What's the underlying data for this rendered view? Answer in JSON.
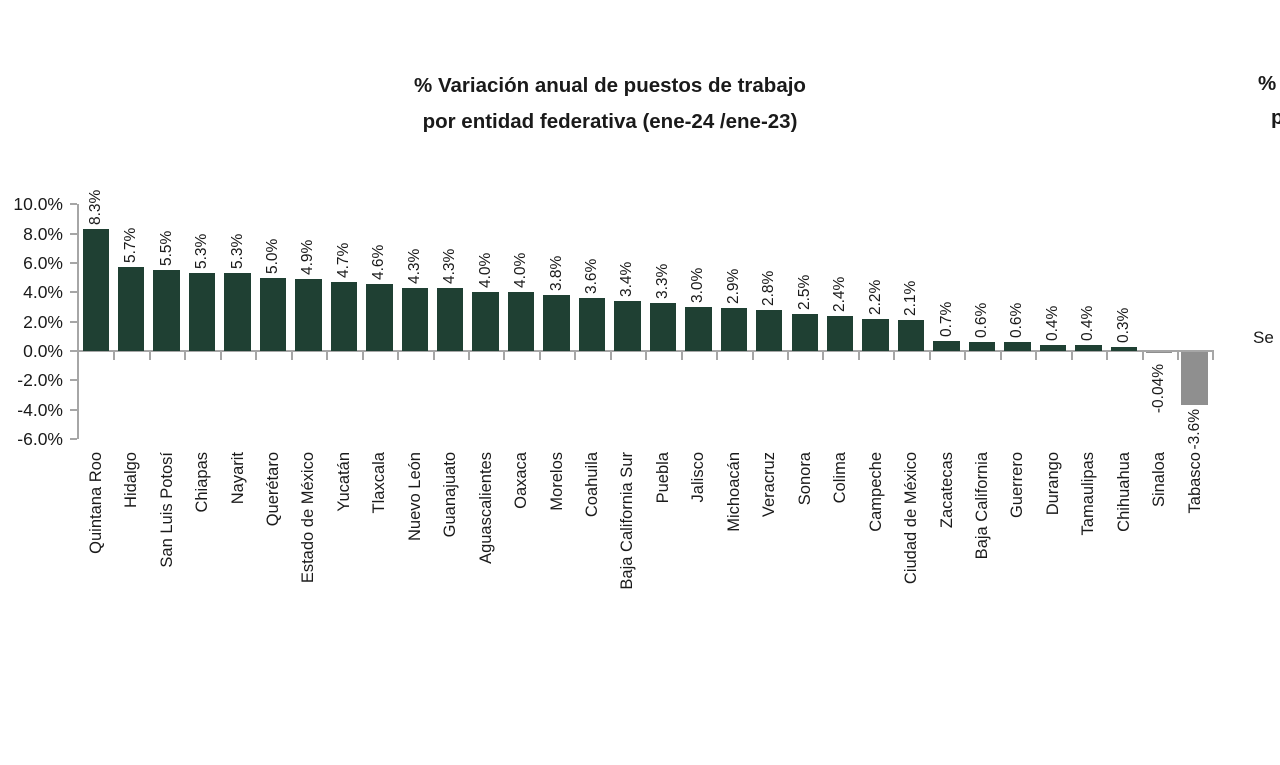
{
  "chart_data": {
    "type": "bar",
    "title": "% Variación anual de puestos de trabajo por entidad federativa (ene-24 /ene-23)",
    "title_lines": [
      "% Variación anual de puestos de trabajo",
      "por entidad federativa (ene-24 /ene-23)"
    ],
    "xlabel": "",
    "ylabel": "",
    "ylim": [
      -6.0,
      10.0
    ],
    "grid": false,
    "legend_position": "none",
    "y_tick_labels": [
      "10.0%",
      "8.0%",
      "6.0%",
      "4.0%",
      "2.0%",
      "0.0%",
      "-2.0%",
      "-4.0%",
      "-6.0%"
    ],
    "y_tick_values": [
      10.0,
      8.0,
      6.0,
      4.0,
      2.0,
      0.0,
      -2.0,
      -4.0,
      -6.0
    ],
    "categories": [
      "Quintana Roo",
      "Hidalgo",
      "San Luis Potosí",
      "Chiapas",
      "Nayarit",
      "Querétaro",
      "Estado de México",
      "Yucatán",
      "Tlaxcala",
      "Nuevo León",
      "Guanajuato",
      "Aguascalientes",
      "Oaxaca",
      "Morelos",
      "Coahuila",
      "Baja California Sur",
      "Puebla",
      "Jalisco",
      "Michoacán",
      "Veracruz",
      "Sonora",
      "Colima",
      "Campeche",
      "Ciudad de México",
      "Zacatecas",
      "Baja California",
      "Guerrero",
      "Durango",
      "Tamaulipas",
      "Chihuahua",
      "Sinaloa",
      "Tabasco"
    ],
    "values": [
      8.3,
      5.7,
      5.5,
      5.3,
      5.3,
      5.0,
      4.9,
      4.7,
      4.6,
      4.3,
      4.3,
      4.0,
      4.0,
      3.8,
      3.6,
      3.4,
      3.3,
      3.0,
      2.9,
      2.8,
      2.5,
      2.4,
      2.2,
      2.1,
      0.7,
      0.6,
      0.6,
      0.4,
      0.4,
      0.3,
      -0.04,
      -3.6
    ],
    "data_labels": [
      "8.3%",
      "5.7%",
      "5.5%",
      "5.3%",
      "5.3%",
      "5.0%",
      "4.9%",
      "4.7%",
      "4.6%",
      "4.3%",
      "4.3%",
      "4.0%",
      "4.0%",
      "3.8%",
      "3.6%",
      "3.4%",
      "3.3%",
      "3.0%",
      "2.9%",
      "2.8%",
      "2.5%",
      "2.4%",
      "2.2%",
      "2.1%",
      "0.7%",
      "0.6%",
      "0.6%",
      "0.4%",
      "0.4%",
      "0.3%",
      "-0.04%",
      "-3.6%"
    ],
    "colors": {
      "bar_positive": "#1f4033",
      "bar_negative": "#8f8f8f",
      "axis": "#a6a6a6",
      "text": "#1a1a1a"
    }
  },
  "side_chart_fragments": {
    "title_line1": "%",
    "title_line2": "p",
    "label": "Se"
  }
}
